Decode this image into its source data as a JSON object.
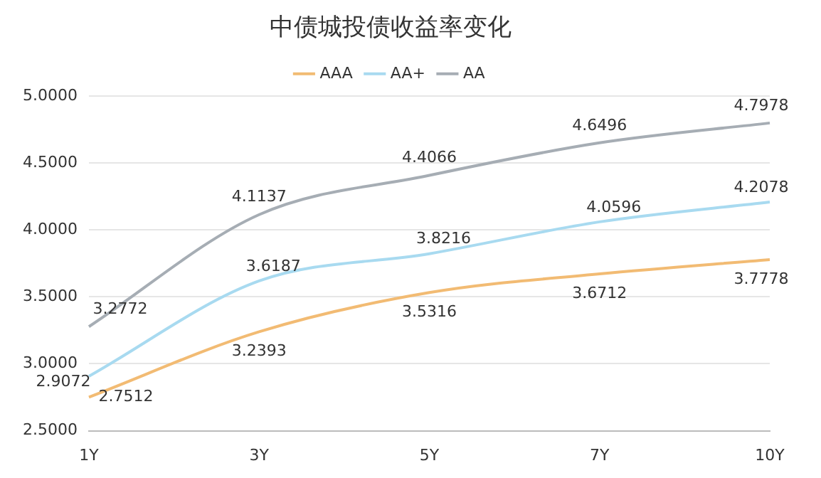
{
  "chart_data": {
    "type": "line",
    "title": "中债城投债收益率变化",
    "categories": [
      "1Y",
      "3Y",
      "5Y",
      "7Y",
      "10Y"
    ],
    "series": [
      {
        "name": "AAA",
        "color": "#f2bb73",
        "values": [
          2.7512,
          3.2393,
          3.5316,
          3.6712,
          3.7778
        ]
      },
      {
        "name": "AA+",
        "color": "#a8daf0",
        "values": [
          2.9072,
          3.6187,
          3.8216,
          4.0596,
          4.2078
        ]
      },
      {
        "name": "AA",
        "color": "#a6adb4",
        "values": [
          3.2772,
          4.1137,
          4.4066,
          4.6496,
          4.7978
        ]
      }
    ],
    "ylim": [
      2.5,
      5
    ],
    "yticks": [
      {
        "value": 2.5,
        "label": "2.5000"
      },
      {
        "value": 3,
        "label": "3.0000"
      },
      {
        "value": 3.5,
        "label": "3.5000"
      },
      {
        "value": 4,
        "label": "4.0000"
      },
      {
        "value": 4.5,
        "label": "4.5000"
      },
      {
        "value": 5,
        "label": "5.0000"
      }
    ],
    "grid": "y",
    "legend": "top",
    "marker": "none",
    "data_labels": true
  }
}
